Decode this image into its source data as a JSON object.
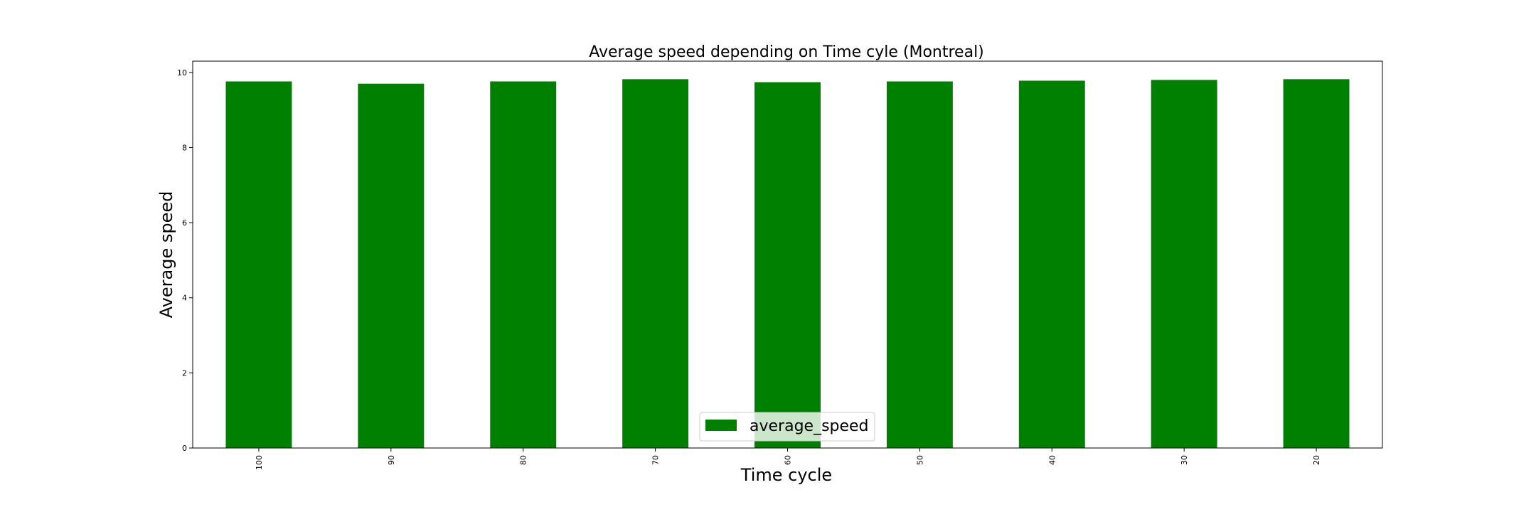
{
  "chart_data": {
    "type": "bar",
    "title": "Average speed depending on Time cyle (Montreal)",
    "xlabel": "Time cycle",
    "ylabel": "Average speed",
    "categories": [
      "100",
      "90",
      "80",
      "70",
      "60",
      "50",
      "40",
      "30",
      "20"
    ],
    "series": [
      {
        "name": "average_speed",
        "color": "#008000",
        "values": [
          9.76,
          9.7,
          9.76,
          9.82,
          9.74,
          9.76,
          9.78,
          9.8,
          9.82
        ]
      }
    ],
    "ylim": [
      0,
      10.3
    ],
    "yticks": [
      0,
      2,
      4,
      6,
      8,
      10
    ],
    "grid": false,
    "legend": "lower center"
  }
}
